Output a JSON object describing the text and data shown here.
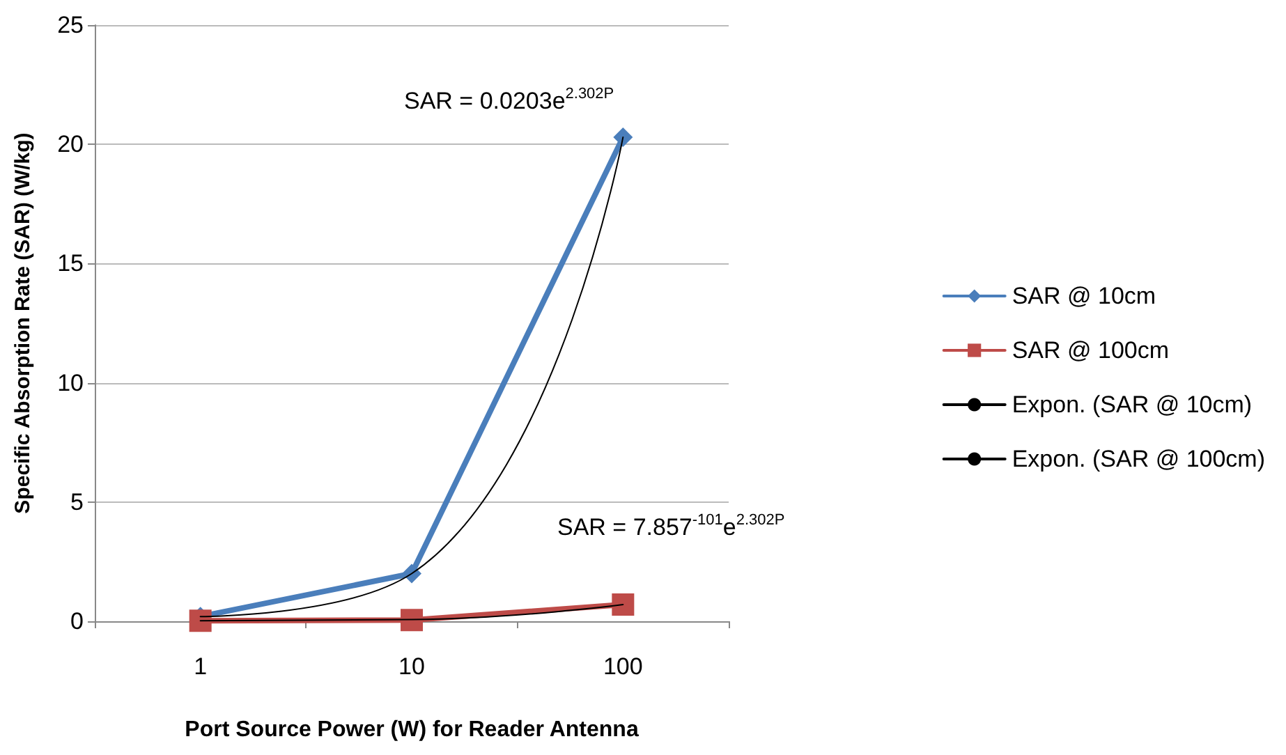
{
  "chart_data": {
    "type": "line",
    "xlabel": "Port Source Power (W) for Reader Antenna",
    "ylabel": "Specific Absorption Rate (SAR) (W/kg)",
    "categories": [
      "1",
      "10",
      "100"
    ],
    "series": [
      {
        "name": "SAR @ 10cm",
        "color": "#4a7ebb",
        "values": [
          0.2,
          2.0,
          20.3
        ],
        "marker": "diamond"
      },
      {
        "name": "SAR @ 100cm",
        "color": "#be4b48",
        "values": [
          0.02,
          0.05,
          0.7
        ],
        "marker": "square"
      },
      {
        "name": "Expon. (SAR @ 10cm)",
        "color": "#000000",
        "values": [
          0.2,
          2.0,
          20.3
        ],
        "marker": "none"
      },
      {
        "name": "Expon. (SAR @ 100cm)",
        "color": "#000000",
        "values": [
          0.02,
          0.07,
          0.7
        ],
        "marker": "none"
      }
    ],
    "ylim": [
      0,
      25
    ],
    "yticks": [
      0,
      5,
      10,
      15,
      20,
      25
    ],
    "grid": "y",
    "legend": "right",
    "annotations": [
      "SAR = 0.0203e$^{2.302P}$",
      "SAR = 7.857$^{-101}$e$^{2.302P}$"
    ]
  }
}
